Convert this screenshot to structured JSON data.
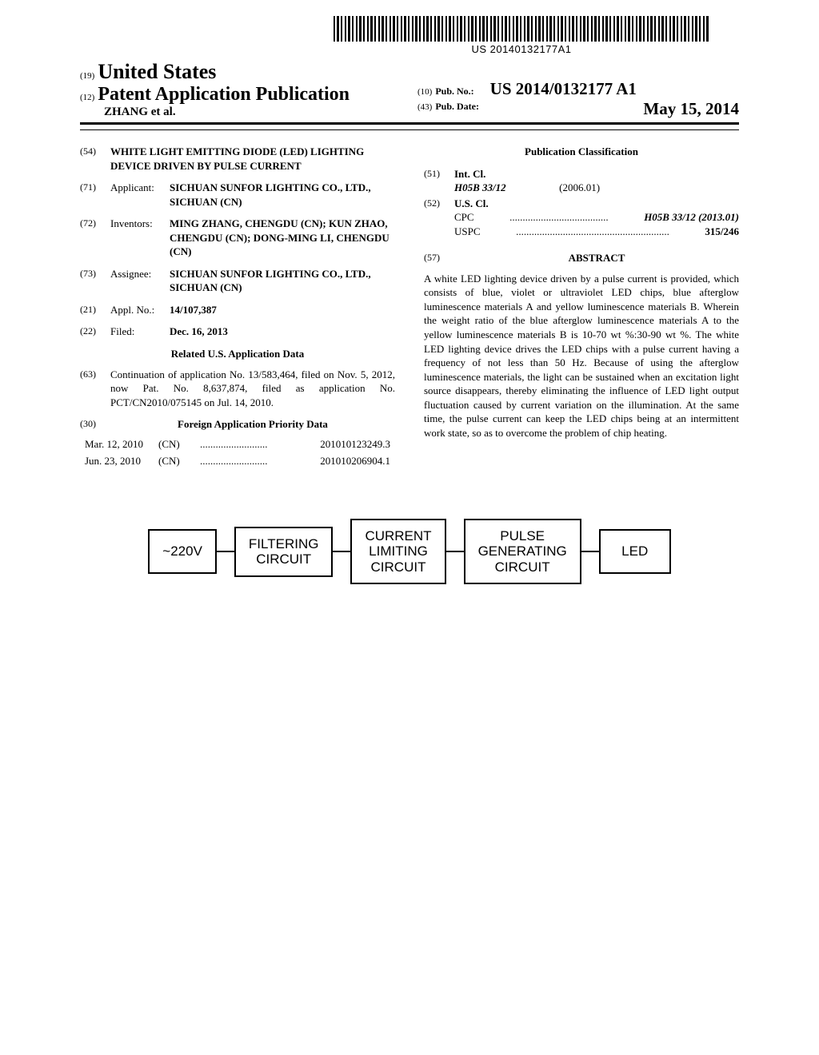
{
  "barcode_number": "US 20140132177A1",
  "header": {
    "code19": "(19)",
    "country": "United States",
    "code12": "(12)",
    "doc_type": "Patent Application Publication",
    "authors": "ZHANG et al.",
    "code10": "(10)",
    "pub_no_label": "Pub. No.:",
    "pub_no": "US 2014/0132177 A1",
    "code43": "(43)",
    "pub_date_label": "Pub. Date:",
    "pub_date": "May 15, 2014"
  },
  "left": {
    "f54": {
      "code": "(54)",
      "text": "WHITE LIGHT EMITTING DIODE (LED) LIGHTING DEVICE DRIVEN BY PULSE CURRENT"
    },
    "f71": {
      "code": "(71)",
      "label": "Applicant:",
      "text": "SICHUAN SUNFOR LIGHTING CO., LTD., SICHUAN (CN)"
    },
    "f72": {
      "code": "(72)",
      "label": "Inventors:",
      "text": "MING ZHANG, CHENGDU (CN); KUN ZHAO, CHENGDU (CN); DONG-MING LI, CHENGDU (CN)"
    },
    "f73": {
      "code": "(73)",
      "label": "Assignee:",
      "text": "SICHUAN SUNFOR LIGHTING CO., LTD., SICHUAN (CN)"
    },
    "f21": {
      "code": "(21)",
      "label": "Appl. No.:",
      "text": "14/107,387"
    },
    "f22": {
      "code": "(22)",
      "label": "Filed:",
      "text": "Dec. 16, 2013"
    },
    "related_heading": "Related U.S. Application Data",
    "f63": {
      "code": "(63)",
      "text": "Continuation of application No. 13/583,464, filed on Nov. 5, 2012, now Pat. No. 8,637,874, filed as application No. PCT/CN2010/075145 on Jul. 14, 2010."
    },
    "f30": {
      "code": "(30)",
      "heading": "Foreign Application Priority Data"
    },
    "priority": [
      {
        "date": "Mar. 12, 2010",
        "country": "(CN)",
        "num": "201010123249.3"
      },
      {
        "date": "Jun. 23, 2010",
        "country": "(CN)",
        "num": "201010206904.1"
      }
    ]
  },
  "right": {
    "class_heading": "Publication Classification",
    "f51": {
      "code": "(51)",
      "label": "Int. Cl.",
      "class": "H05B 33/12",
      "year": "(2006.01)"
    },
    "f52": {
      "code": "(52)",
      "label": "U.S. Cl.",
      "cpc_label": "CPC",
      "cpc_dots": "......................................",
      "cpc_val": "H05B 33/12 (2013.01)",
      "uspc_label": "USPC",
      "uspc_dots": "...........................................................",
      "uspc_val": "315/246"
    },
    "f57": {
      "code": "(57)",
      "heading": "ABSTRACT"
    },
    "abstract": "A white LED lighting device driven by a pulse current is provided, which consists of blue, violet or ultraviolet LED chips, blue afterglow luminescence materials A and yellow luminescence materials B. Wherein the weight ratio of the blue afterglow luminescence materials A to the yellow luminescence materials B is 10-70 wt %:30-90 wt %. The white LED lighting device drives the LED chips with a pulse current having a frequency of not less than 50 Hz. Because of using the afterglow luminescence materials, the light can be sustained when an excitation light source disappears, thereby eliminating the influence of LED light output fluctuation caused by current variation on the illumination. At the same time, the pulse current can keep the LED chips being at an intermittent work state, so as to overcome the problem of chip heating."
  },
  "diagram": {
    "b1": "~220V",
    "b2": "FILTERING CIRCUIT",
    "b3": "CURRENT LIMITING CIRCUIT",
    "b4": "PULSE GENERATING CIRCUIT",
    "b5": "LED"
  }
}
